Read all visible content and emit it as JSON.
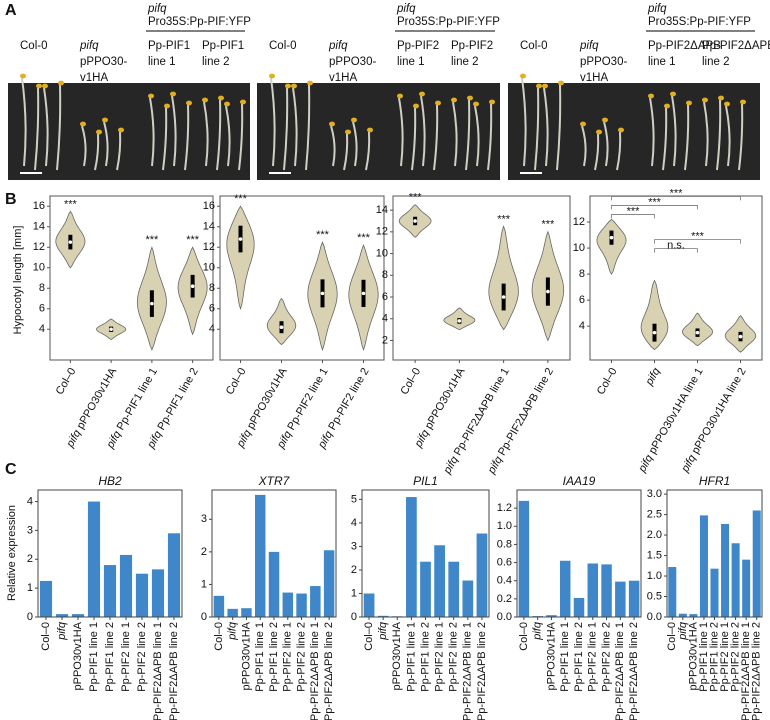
{
  "panel_a": {
    "label": "A",
    "groups": [
      {
        "header_genotype": "pifq",
        "header_construct": "Pro35S:Pp-PIF:YFP",
        "lanes": [
          [
            "Col-0"
          ],
          [
            "pifq",
            "pPPO30-",
            "v1HA"
          ],
          [
            "Pp-PIF1",
            "line 1"
          ],
          [
            "Pp-PIF1",
            "line 2"
          ]
        ]
      },
      {
        "header_genotype": "pifq",
        "header_construct": "Pro35S:Pp-PIF:YFP",
        "lanes": [
          [
            "Col-0"
          ],
          [
            "pifq",
            "pPPO30-",
            "v1HA"
          ],
          [
            "Pp-PIF2",
            "line 1"
          ],
          [
            "Pp-PIF2",
            "line 2"
          ]
        ]
      },
      {
        "header_genotype": "pifq",
        "header_construct": "Pro35S:Pp-PIF:YFP",
        "lanes": [
          [
            "Col-0"
          ],
          [
            "pifq",
            "pPPO30-",
            "v1HA"
          ],
          [
            "Pp-PIF2ΔAPB",
            "line 1"
          ],
          [
            "Pp-PIF2ΔAPB",
            "line 2"
          ]
        ]
      }
    ]
  },
  "panel_b": {
    "label": "B",
    "ylabel": "Hypocotyl length [mm]",
    "charts": [
      {
        "type": "violin",
        "categories": [
          "Col–0",
          "pifq pPPO30v1HA",
          "pifq Pp-PIF1 line 1",
          "pifq Pp-PIF1 line 2"
        ],
        "mins": [
          10,
          3,
          2,
          3.5
        ],
        "medians": [
          12.5,
          4,
          6.5,
          8.2
        ],
        "maxs": [
          15.5,
          5,
          12,
          12
        ],
        "annotations": [
          "***",
          null,
          "***",
          "***"
        ],
        "ylim": [
          1,
          17
        ],
        "yticks": [
          4,
          6,
          8,
          10,
          12,
          14,
          16
        ],
        "color": "#d8d2b2"
      },
      {
        "type": "violin",
        "categories": [
          "Col–0",
          "pifq pPPO30v1HA",
          "pifq Pp-PIF2 line 1",
          "pifq Pp-PIF2 line 2"
        ],
        "mins": [
          6,
          2.5,
          2,
          2
        ],
        "medians": [
          12.8,
          4.2,
          7.5,
          7.5
        ],
        "maxs": [
          16,
          7,
          12.5,
          12.2
        ],
        "annotations": [
          "***",
          null,
          "***",
          "***"
        ],
        "ylim": [
          1,
          17
        ],
        "yticks": [
          4,
          6,
          8,
          10,
          12,
          14,
          16
        ],
        "color": "#d8d2b2"
      },
      {
        "type": "violin",
        "categories": [
          "Col–0",
          "pifq pPPO30v1HA",
          "pifq Pp-PIF2ΔAPB line 1",
          "pifq Pp-PIF2ΔAPB line 2"
        ],
        "mins": [
          11.5,
          3,
          3,
          2
        ],
        "medians": [
          13,
          3.8,
          6,
          6.5
        ],
        "maxs": [
          14.5,
          5,
          12.5,
          12
        ],
        "annotations": [
          "***",
          null,
          "***",
          "***"
        ],
        "ylim": [
          0.2,
          15.3
        ],
        "yticks": [
          2,
          4,
          6,
          8,
          10,
          12,
          14
        ],
        "color": "#d8d2b2"
      },
      {
        "type": "violin",
        "categories": [
          "Col–0",
          "pifq",
          "pifq pPPO30v1HA line 1",
          "pifq pPPO30v1HA line 2"
        ],
        "mins": [
          8,
          2.2,
          2.5,
          2
        ],
        "medians": [
          10.8,
          3.5,
          3.5,
          3.2
        ],
        "maxs": [
          12.2,
          7.5,
          5,
          4.8
        ],
        "comparisons": [
          {
            "groups": [
              0,
              1
            ],
            "label": "***"
          },
          {
            "groups": [
              0,
              2
            ],
            "label": "***"
          },
          {
            "groups": [
              0,
              3
            ],
            "label": "***"
          },
          {
            "groups": [
              1,
              2
            ],
            "label": "n.s."
          },
          {
            "groups": [
              1,
              3
            ],
            "label": "***"
          }
        ],
        "ylim": [
          1.4,
          14
        ],
        "yticks": [
          4,
          6,
          8,
          10,
          12
        ],
        "color": "#d8d2b2"
      }
    ]
  },
  "panel_c": {
    "label": "C",
    "ylabel": "Relative expression",
    "categories": [
      "Col–0",
      "pifq",
      "pPPO30v1HA",
      "Pp-PIF1 line 1",
      "Pp-PIF1 line 2",
      "Pp-PIF2 line 1",
      "Pp-PIF2 line 2",
      "Pp-PIF2ΔAPB line 1",
      "Pp-PIF2ΔAPB line 2"
    ],
    "charts": [
      {
        "type": "bar",
        "title": "HB2",
        "values": [
          1.25,
          0.1,
          0.1,
          4.0,
          1.8,
          2.15,
          1.5,
          1.65,
          2.9
        ],
        "ylim": [
          0,
          4.4
        ],
        "yticks": [
          0,
          1,
          2,
          3,
          4
        ],
        "color": "#3f87c8"
      },
      {
        "type": "bar",
        "title": "XTR7",
        "values": [
          0.65,
          0.25,
          0.27,
          3.75,
          2.0,
          0.75,
          0.72,
          0.95,
          2.05
        ],
        "ylim": [
          0,
          3.9
        ],
        "yticks": [
          0,
          1,
          2,
          3
        ],
        "color": "#3f87c8"
      },
      {
        "type": "bar",
        "title": "PIL1",
        "values": [
          1.0,
          0.05,
          0.03,
          5.1,
          2.35,
          3.05,
          2.35,
          1.55,
          3.55
        ],
        "ylim": [
          0,
          5.4
        ],
        "yticks": [
          0,
          1,
          2,
          3,
          4,
          5
        ],
        "color": "#3f87c8"
      },
      {
        "type": "bar",
        "title": "IAA19",
        "values": [
          1.28,
          0.01,
          0.02,
          0.62,
          0.21,
          0.59,
          0.58,
          0.39,
          0.4
        ],
        "ylim": [
          0,
          1.4
        ],
        "yticks": [
          {
            "value": 0,
            "label": "0.0"
          },
          0.2,
          0.4,
          0.6,
          0.8,
          {
            "value": 1,
            "label": "1.0"
          },
          1.2
        ],
        "color": "#3f87c8"
      },
      {
        "type": "bar",
        "title": "HFR1",
        "values": [
          1.22,
          0.08,
          0.07,
          2.48,
          1.18,
          2.27,
          1.8,
          1.4,
          2.6
        ],
        "ylim": [
          0,
          3.1
        ],
        "yticks": [
          {
            "value": 0,
            "label": "0.0"
          },
          0.5,
          {
            "value": 1,
            "label": "1.0"
          },
          1.5,
          {
            "value": 2,
            "label": "2.0"
          },
          2.5,
          {
            "value": 3,
            "label": "3.0"
          }
        ],
        "color": "#3f87c8"
      }
    ]
  }
}
